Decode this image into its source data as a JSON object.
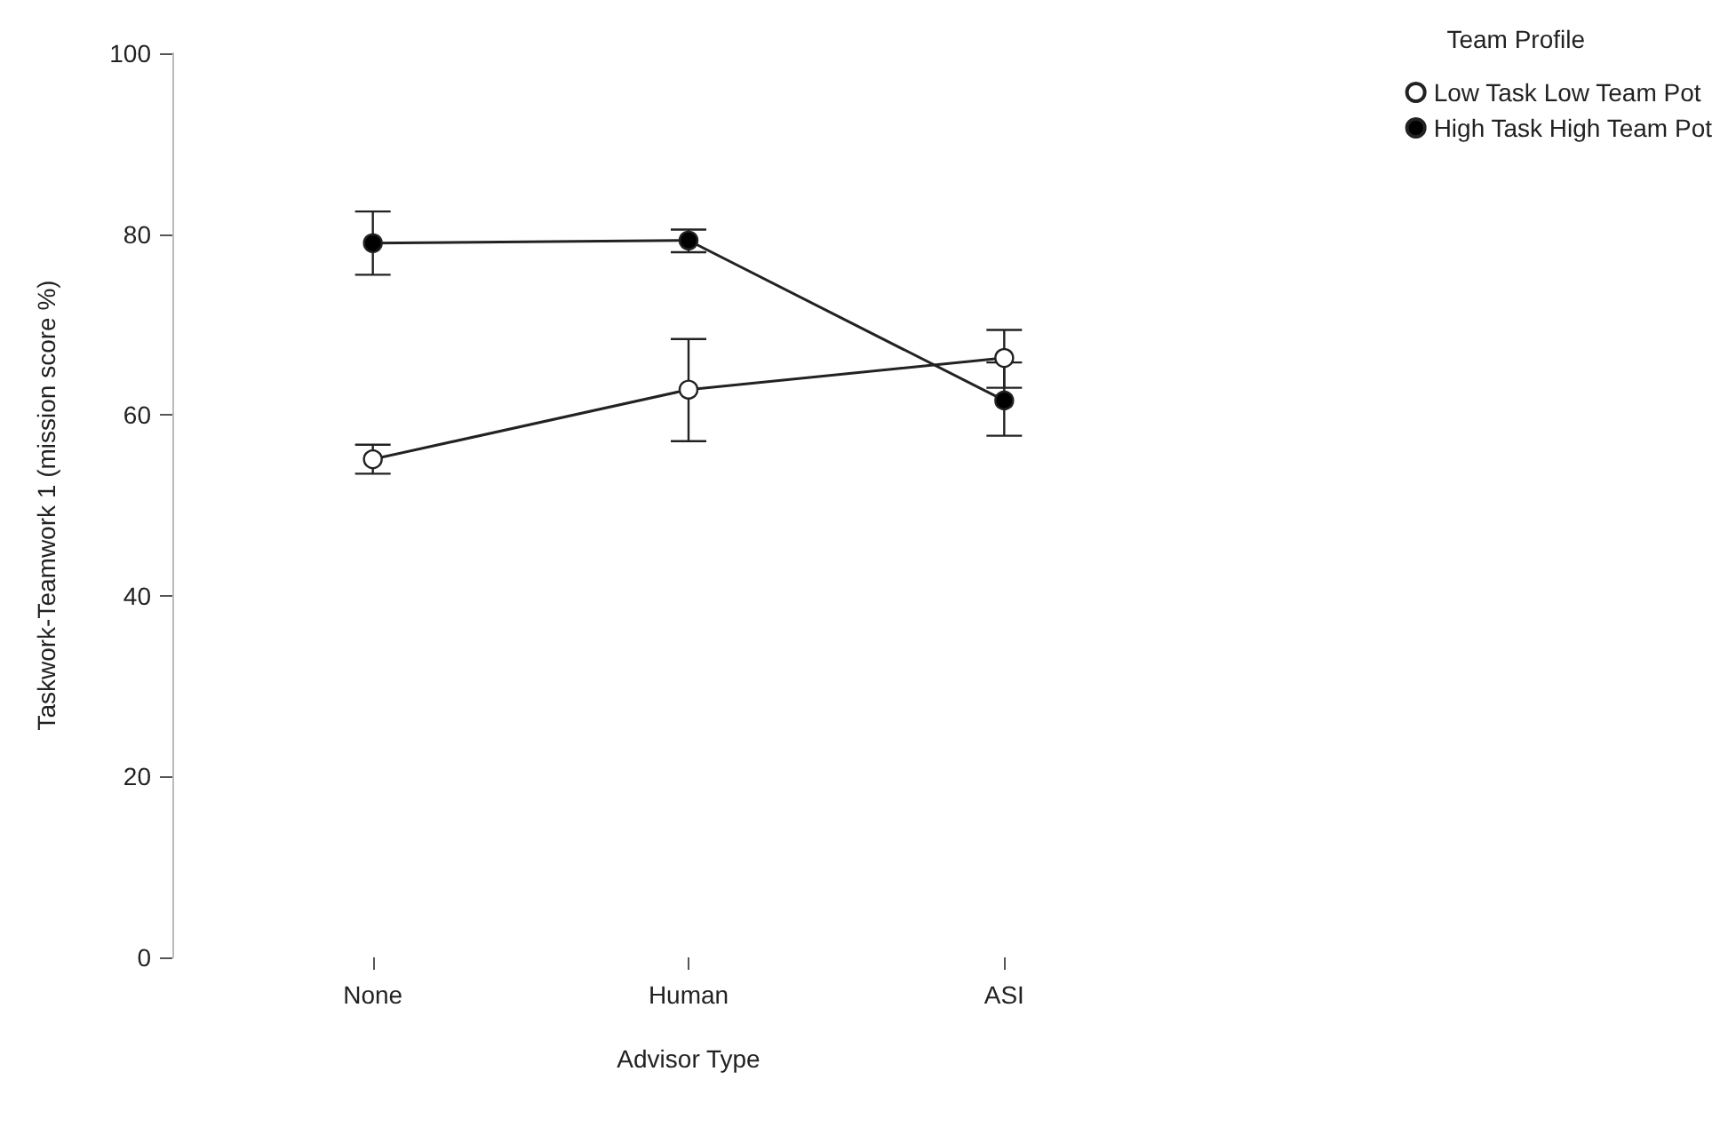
{
  "chart_data": {
    "type": "line",
    "xlabel": "Advisor Type",
    "ylabel": "Taskwork-Teamwork 1 (mission score %)",
    "legend_title": "Team Profile",
    "categories": [
      "None",
      "Human",
      "ASI"
    ],
    "series": [
      {
        "name": "Low Task Low Team Pot",
        "color": "#ffffff",
        "values": [
          55.1,
          62.8,
          66.3
        ],
        "errors": [
          [
            53.5,
            56.7
          ],
          [
            57.1,
            68.4
          ],
          [
            63.0,
            69.4
          ]
        ]
      },
      {
        "name": "High Task High Team Pot",
        "color": "#000000",
        "values": [
          79.0,
          79.3,
          61.6
        ],
        "errors": [
          [
            75.5,
            82.5
          ],
          [
            78.0,
            80.5
          ],
          [
            57.7,
            65.8
          ]
        ]
      }
    ],
    "ylim": [
      0,
      100
    ],
    "yticks": [
      0,
      20,
      40,
      60,
      80,
      100
    ],
    "grid": false,
    "legend": "top right",
    "marker": "circle",
    "line_style": "solid"
  }
}
